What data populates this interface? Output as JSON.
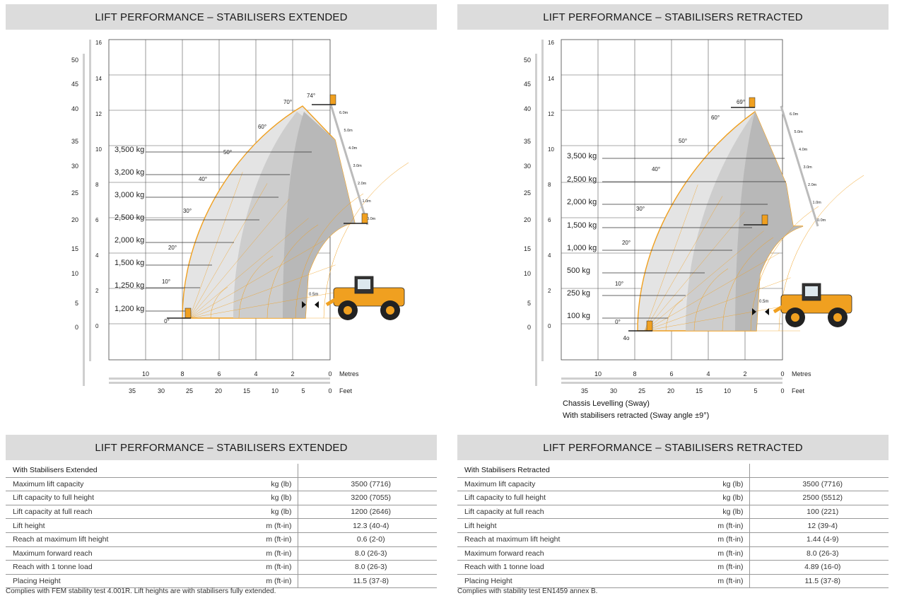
{
  "left_chart": {
    "title": "LIFT PERFORMANCE – STABILISERS EXTENDED",
    "ft_ticks": [
      "50",
      "45",
      "40",
      "35",
      "30",
      "25",
      "20",
      "15",
      "10",
      "5",
      "0"
    ],
    "m_ticks": [
      "16",
      "14",
      "12",
      "10",
      "8",
      "6",
      "4",
      "2",
      "0"
    ],
    "loads": [
      "3,500 kg",
      "3,200 kg",
      "3,000 kg",
      "2,500 kg",
      "2,000 kg",
      "1,500 kg",
      "1,250 kg",
      "1,200 kg"
    ],
    "angles": [
      "0°",
      "10°",
      "20°",
      "30°",
      "40°",
      "50°",
      "60°",
      "70°",
      "74°"
    ],
    "ext": [
      "6.0m",
      "5.0m",
      "4.0m",
      "3.0m",
      "2.0m",
      "1.0m",
      "0.0m"
    ],
    "x_metres": [
      "10",
      "8",
      "6",
      "4",
      "2",
      "0"
    ],
    "x_feet": [
      "35",
      "30",
      "25",
      "20",
      "15",
      "10",
      "5",
      "0"
    ],
    "metres_label": "Metres",
    "feet_label": "Feet",
    "reach_marker": "0.5m"
  },
  "right_chart": {
    "title": "LIFT PERFORMANCE – STABILISERS RETRACTED",
    "ft_ticks": [
      "50",
      "45",
      "40",
      "35",
      "30",
      "25",
      "20",
      "15",
      "10",
      "5",
      "0"
    ],
    "m_ticks": [
      "16",
      "14",
      "12",
      "10",
      "8",
      "6",
      "4",
      "2",
      "0"
    ],
    "loads": [
      "3,500 kg",
      "2,500 kg",
      "2,000 kg",
      "1,500 kg",
      "1,000 kg",
      "500 kg",
      "250 kg",
      "100 kg"
    ],
    "angles": [
      "4o",
      "0°",
      "10°",
      "20°",
      "30°",
      "40°",
      "50°",
      "60°",
      "69°"
    ],
    "ext": [
      "6.0m",
      "5.0m",
      "4.0m",
      "3.0m",
      "2.0m",
      "1.0m",
      "0.0m"
    ],
    "x_metres": [
      "10",
      "8",
      "6",
      "4",
      "2",
      "0"
    ],
    "x_feet": [
      "35",
      "30",
      "25",
      "20",
      "15",
      "10",
      "5",
      "0"
    ],
    "metres_label": "Metres",
    "feet_label": "Feet",
    "reach_marker": "0.5m",
    "note1": "Chassis Levelling (Sway)",
    "note2": "With stabilisers retracted (Sway angle ±9°)"
  },
  "left_table": {
    "title": "LIFT PERFORMANCE – STABILISERS EXTENDED",
    "heading": "With Stabilisers Extended",
    "rows": [
      {
        "label": "Maximum lift capacity",
        "unit": "kg (lb)",
        "value": "3500 (7716)"
      },
      {
        "label": "Lift capacity to full height",
        "unit": "kg (lb)",
        "value": "3200 (7055)"
      },
      {
        "label": "Lift capacity at full reach",
        "unit": "kg (lb)",
        "value": "1200 (2646)"
      },
      {
        "label": "Lift height",
        "unit": "m (ft-in)",
        "value": "12.3 (40-4)"
      },
      {
        "label": "Reach at maximum lift height",
        "unit": "m (ft-in)",
        "value": "0.6 (2-0)"
      },
      {
        "label": "Maximum forward reach",
        "unit": "m (ft-in)",
        "value": "8.0 (26-3)"
      },
      {
        "label": "Reach with 1 tonne load",
        "unit": "m (ft-in)",
        "value": "8.0 (26-3)"
      },
      {
        "label": "Placing Height",
        "unit": "m (ft-in)",
        "value": "11.5 (37-8)"
      }
    ],
    "footnote": "Complies with FEM stability test 4.001R. Lift heights are with stabilisers fully extended."
  },
  "right_table": {
    "title": "LIFT PERFORMANCE – STABILISERS RETRACTED",
    "heading": "With Stabilisers Retracted",
    "rows": [
      {
        "label": "Maximum lift capacity",
        "unit": "kg (lb)",
        "value": "3500 (7716)"
      },
      {
        "label": "Lift capacity to full height",
        "unit": "kg (lb)",
        "value": "2500 (5512)"
      },
      {
        "label": "Lift capacity at full reach",
        "unit": "kg (lb)",
        "value": "100 (221)"
      },
      {
        "label": "Lift height",
        "unit": "m (ft-in)",
        "value": "12 (39-4)"
      },
      {
        "label": "Reach at maximum lift height",
        "unit": "m (ft-in)",
        "value": "1.44 (4-9)"
      },
      {
        "label": "Maximum forward reach",
        "unit": "m (ft-in)",
        "value": "8.0 (26-3)"
      },
      {
        "label": "Reach with 1 tonne load",
        "unit": "m (ft-in)",
        "value": "4.89 (16-0)"
      },
      {
        "label": "Placing Height",
        "unit": "m (ft-in)",
        "value": "11.5 (37-8)"
      }
    ],
    "footnote": "Complies with stability test EN1459 annex B."
  },
  "colors": {
    "header_bg": "#dcdcdc",
    "orange": "#f0a020",
    "zone_light": "#e6e6e6",
    "zone_dark": "#b5b5b5",
    "grid": "#444444"
  }
}
